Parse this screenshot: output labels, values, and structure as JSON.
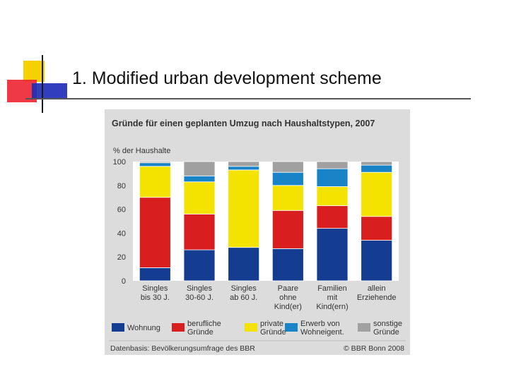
{
  "slide": {
    "title": "1. Modified urban development scheme"
  },
  "chart_data": {
    "type": "bar",
    "stacked": true,
    "title": "Gründe für einen geplanten Umzug nach Haushaltstypen, 2007",
    "ylabel": "% der Haushalte",
    "xlabel": "",
    "ylim": [
      0,
      100
    ],
    "yticks": [
      0,
      20,
      40,
      60,
      80,
      100
    ],
    "categories": [
      [
        "Singles",
        "bis 30 J."
      ],
      [
        "Singles",
        "30-60 J."
      ],
      [
        "Singles",
        "ab 60 J."
      ],
      [
        "Paare",
        "ohne",
        "Kind(er)"
      ],
      [
        "Familien",
        "mit",
        "Kind(ern)"
      ],
      [
        "allein",
        "Erziehende"
      ]
    ],
    "series": [
      {
        "name": "Wohnung",
        "legend": [
          "Wohnung"
        ],
        "color": "#143c91",
        "values": [
          11,
          26,
          28,
          27,
          44,
          34
        ]
      },
      {
        "name": "berufliche Gründe",
        "legend": [
          "berufliche",
          "Gründe"
        ],
        "color": "#d81e1e",
        "values": [
          59,
          30,
          0,
          32,
          19,
          20
        ]
      },
      {
        "name": "private Gründe",
        "legend": [
          "private",
          "Gründe"
        ],
        "color": "#f4e300",
        "values": [
          26,
          27,
          65,
          21,
          16,
          37
        ]
      },
      {
        "name": "Erwerb von Wohneigent.",
        "legend": [
          "Erwerb von",
          "Wohneigent."
        ],
        "color": "#1883c6",
        "values": [
          3,
          5,
          3,
          11,
          15,
          6
        ]
      },
      {
        "name": "sonstige Gründe",
        "legend": [
          "sonstige",
          "Gründe"
        ],
        "color": "#a0a0a0",
        "values": [
          1,
          12,
          4,
          9,
          6,
          3
        ]
      }
    ],
    "source": "Datenbasis: Bevölkerungsumfrage des BBR",
    "copyright": "© BBR Bonn 2008"
  }
}
